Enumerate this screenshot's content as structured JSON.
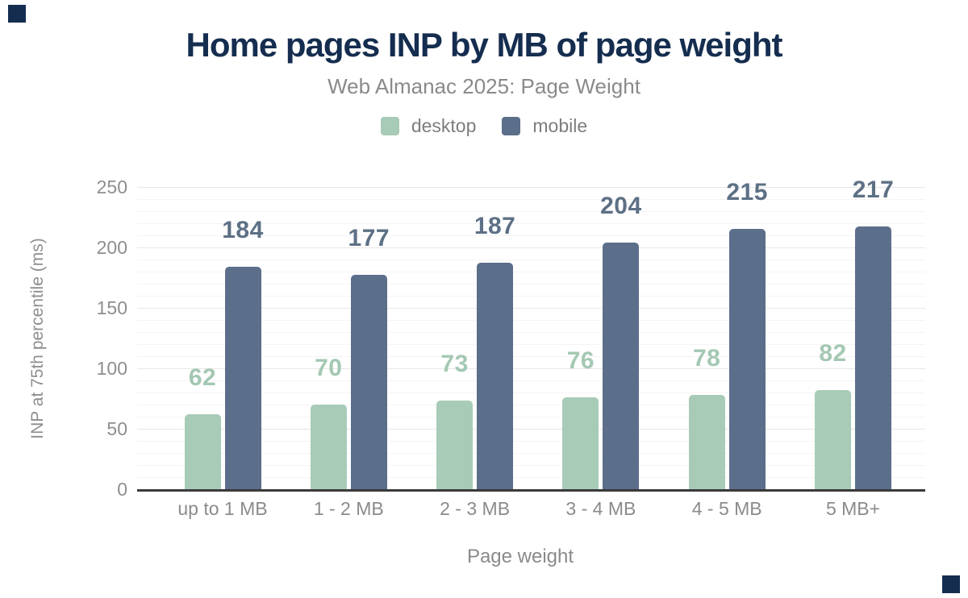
{
  "figure": {
    "title": "Home pages INP by MB of page weight",
    "subtitle": "Web Almanac 2025: Page Weight",
    "accent_color": "#152d4f",
    "title_color": "#152d4f",
    "subtitle_color": "#8a8a8a",
    "axis_line_color": "#3a3a3a",
    "grid_minor_color": "#f4f4f4",
    "grid_major_color": "#e7e7e7",
    "tick_label_color": "#8e8e8e"
  },
  "chart_data": {
    "type": "bar",
    "title": "Home pages INP by MB of page weight",
    "subtitle": "Web Almanac 2025: Page Weight",
    "categories": [
      "up to 1 MB",
      "1 - 2 MB",
      "2 - 3 MB",
      "3 - 4 MB",
      "4 - 5 MB",
      "5 MB+"
    ],
    "series": [
      {
        "name": "desktop",
        "color": "#a8cbb7",
        "label_color": "#a4c8b3",
        "values": [
          62,
          70,
          73,
          76,
          78,
          82
        ]
      },
      {
        "name": "mobile",
        "color": "#5b6e8a",
        "label_color": "#5d7085",
        "values": [
          184,
          177,
          187,
          204,
          215,
          217
        ]
      }
    ],
    "xlabel": "Page weight",
    "ylabel": "INP at 75th percentile (ms)",
    "ylim": [
      0,
      250
    ],
    "yticks": [
      0,
      50,
      100,
      150,
      200,
      250
    ],
    "grid": {
      "minor_step": 10,
      "major_step": 50,
      "orientation": "horizontal"
    },
    "legend_position": "top",
    "data_labels": true
  }
}
